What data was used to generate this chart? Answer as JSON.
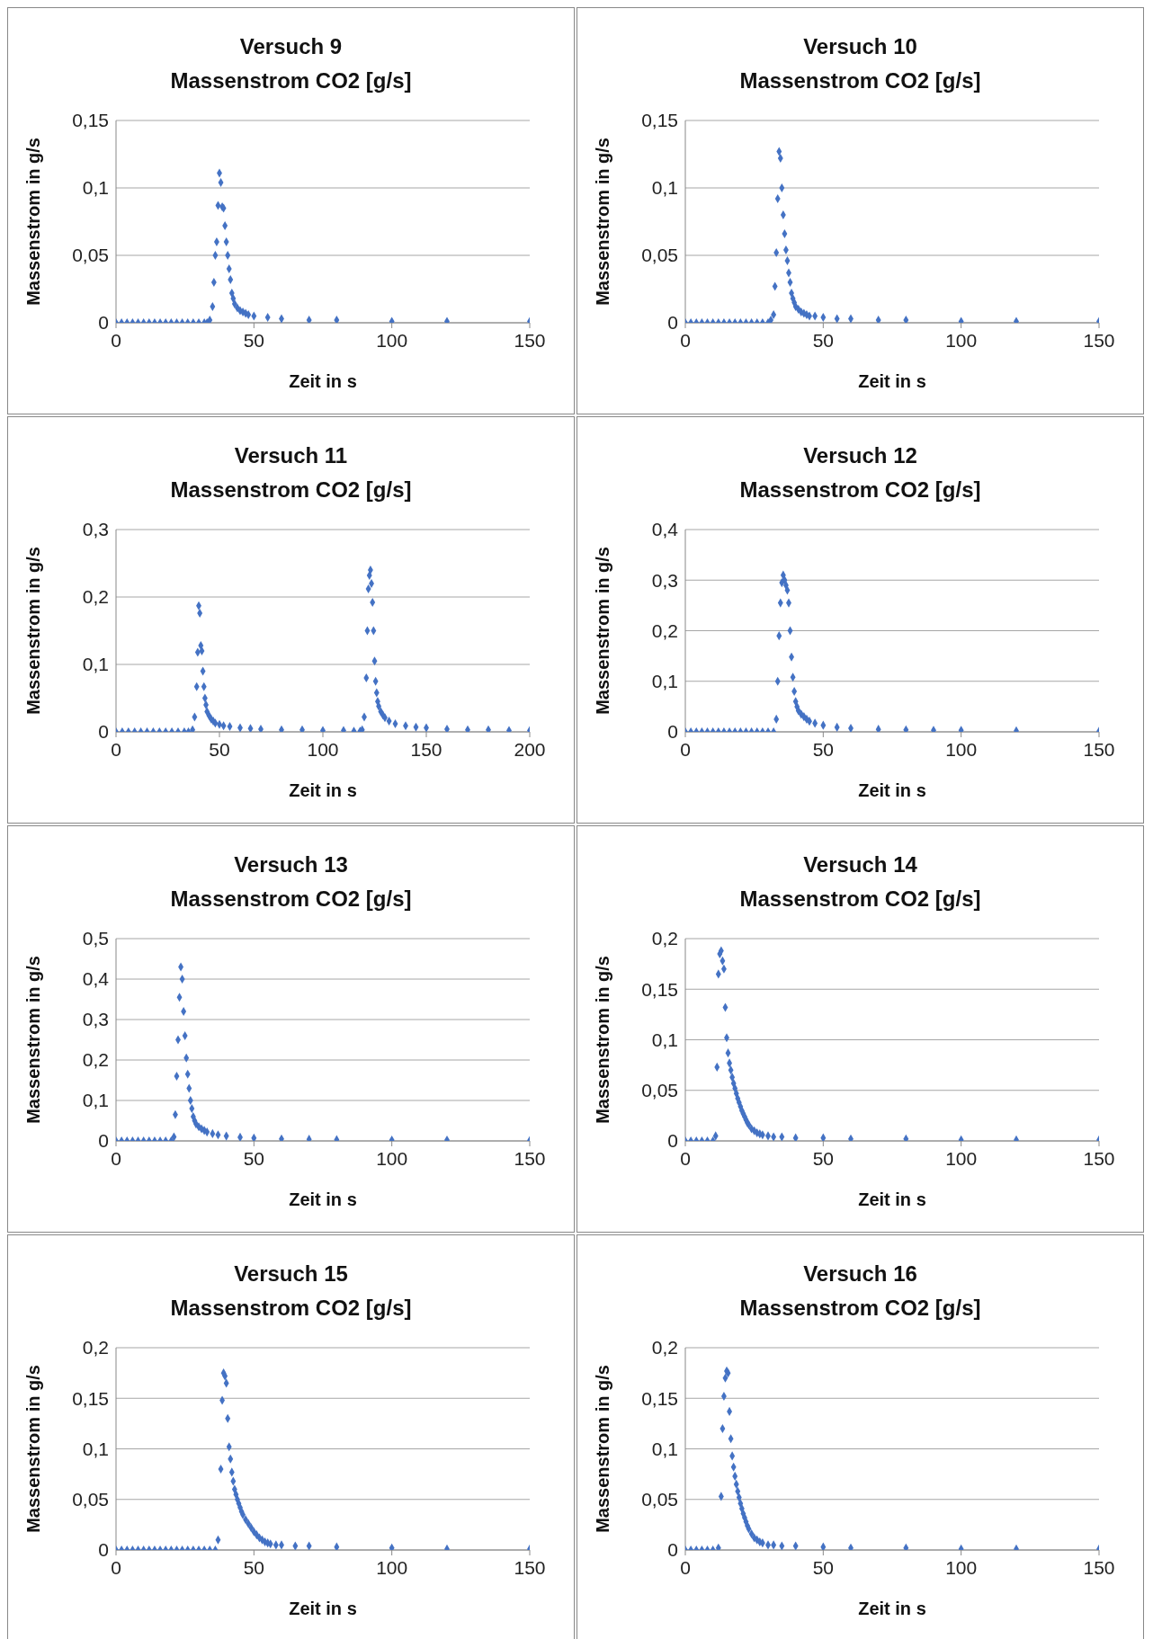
{
  "chart_data": [
    {
      "type": "scatter",
      "title": "Versuch 9",
      "subtitle": "Massenstrom CO2 [g/s]",
      "xlabel": "Zeit in s",
      "ylabel": "Massenstrom in g/s",
      "marker": "diamond",
      "grid": "y",
      "color": "#4472c4",
      "x": [
        0,
        2,
        4,
        6,
        8,
        10,
        12,
        14,
        16,
        18,
        20,
        22,
        24,
        26,
        28,
        30,
        32,
        33,
        34,
        35,
        35.5,
        36,
        36.5,
        37,
        37.5,
        38,
        38.5,
        39,
        39.5,
        40,
        40.5,
        41,
        41.5,
        42,
        42.5,
        43,
        44,
        45,
        46,
        47,
        48,
        50,
        55,
        60,
        70,
        80,
        100,
        120,
        150
      ],
      "values": [
        0,
        0,
        0,
        0,
        0,
        0,
        0,
        0,
        0,
        0,
        0,
        0,
        0,
        0,
        0,
        0,
        0,
        0,
        0.002,
        0.012,
        0.03,
        0.05,
        0.06,
        0.087,
        0.111,
        0.104,
        0.086,
        0.085,
        0.072,
        0.06,
        0.05,
        0.04,
        0.032,
        0.022,
        0.018,
        0.014,
        0.011,
        0.009,
        0.008,
        0.007,
        0.006,
        0.005,
        0.004,
        0.003,
        0.002,
        0.002,
        0.001,
        0.001,
        0.001
      ],
      "xlim": [
        0,
        150
      ],
      "xticks": [
        0,
        50,
        100,
        150
      ],
      "ylim": [
        0,
        0.15
      ],
      "yticks": [
        {
          "value": 0,
          "label": "0"
        },
        {
          "value": 0.05,
          "label": "0,05"
        },
        {
          "value": 0.1,
          "label": "0,1"
        },
        {
          "value": 0.15,
          "label": "0,15"
        }
      ]
    },
    {
      "type": "scatter",
      "title": "Versuch 10",
      "subtitle": "Massenstrom CO2 [g/s]",
      "xlabel": "Zeit in s",
      "ylabel": "Massenstrom in g/s",
      "marker": "diamond",
      "grid": "y",
      "color": "#4472c4",
      "x": [
        0,
        2,
        4,
        6,
        8,
        10,
        12,
        14,
        16,
        18,
        20,
        22,
        24,
        26,
        28,
        30,
        31,
        32,
        32.5,
        33,
        33.5,
        34,
        34.5,
        35,
        35.5,
        36,
        36.5,
        37,
        37.5,
        38,
        38.5,
        39,
        39.5,
        40,
        41,
        42,
        43,
        44,
        45,
        47,
        50,
        55,
        60,
        70,
        80,
        100,
        120,
        150
      ],
      "values": [
        0,
        0,
        0,
        0,
        0,
        0,
        0,
        0,
        0,
        0,
        0,
        0,
        0,
        0,
        0,
        0,
        0.002,
        0.006,
        0.027,
        0.052,
        0.092,
        0.127,
        0.122,
        0.1,
        0.08,
        0.066,
        0.054,
        0.046,
        0.037,
        0.03,
        0.022,
        0.018,
        0.015,
        0.012,
        0.01,
        0.008,
        0.007,
        0.006,
        0.005,
        0.005,
        0.004,
        0.003,
        0.003,
        0.002,
        0.002,
        0.001,
        0.001,
        0.001
      ],
      "xlim": [
        0,
        150
      ],
      "xticks": [
        0,
        50,
        100,
        150
      ],
      "ylim": [
        0,
        0.15
      ],
      "yticks": [
        {
          "value": 0,
          "label": "0"
        },
        {
          "value": 0.05,
          "label": "0,05"
        },
        {
          "value": 0.1,
          "label": "0,1"
        },
        {
          "value": 0.15,
          "label": "0,15"
        }
      ]
    },
    {
      "type": "scatter",
      "title": "Versuch 11",
      "subtitle": "Massenstrom CO2 [g/s]",
      "xlabel": "Zeit in s",
      "ylabel": "Massenstrom in g/s",
      "marker": "diamond",
      "grid": "y",
      "color": "#4472c4",
      "x": [
        0,
        3,
        6,
        9,
        12,
        15,
        18,
        21,
        24,
        27,
        30,
        33,
        35,
        37,
        38,
        39,
        39.5,
        40,
        40.5,
        41,
        41.5,
        42,
        42.5,
        43,
        43.5,
        44,
        45,
        46,
        47,
        48,
        50,
        52,
        55,
        60,
        65,
        70,
        80,
        90,
        100,
        110,
        115,
        118,
        119,
        120,
        121,
        121.5,
        122,
        122.5,
        123,
        123.5,
        124,
        124.5,
        125,
        125.5,
        126,
        126.5,
        127,
        128,
        129,
        130,
        132,
        135,
        140,
        145,
        150,
        160,
        170,
        180,
        190,
        200
      ],
      "values": [
        0,
        0,
        0,
        0,
        0,
        0,
        0,
        0,
        0,
        0,
        0,
        0,
        0,
        0.003,
        0.022,
        0.067,
        0.118,
        0.187,
        0.176,
        0.128,
        0.12,
        0.09,
        0.067,
        0.05,
        0.04,
        0.03,
        0.024,
        0.019,
        0.016,
        0.013,
        0.011,
        0.009,
        0.008,
        0.006,
        0.005,
        0.004,
        0.003,
        0.003,
        0.002,
        0.002,
        0.001,
        0.001,
        0.003,
        0.022,
        0.08,
        0.15,
        0.212,
        0.232,
        0.24,
        0.22,
        0.192,
        0.15,
        0.105,
        0.075,
        0.058,
        0.045,
        0.038,
        0.03,
        0.025,
        0.021,
        0.016,
        0.012,
        0.009,
        0.007,
        0.006,
        0.004,
        0.003,
        0.003,
        0.002,
        0.002
      ],
      "xlim": [
        0,
        200
      ],
      "xticks": [
        0,
        50,
        100,
        150,
        200
      ],
      "ylim": [
        0,
        0.3
      ],
      "yticks": [
        {
          "value": 0,
          "label": "0"
        },
        {
          "value": 0.1,
          "label": "0,1"
        },
        {
          "value": 0.2,
          "label": "0,2"
        },
        {
          "value": 0.3,
          "label": "0,3"
        }
      ]
    },
    {
      "type": "scatter",
      "title": "Versuch 12",
      "subtitle": "Massenstrom CO2 [g/s]",
      "xlabel": "Zeit in s",
      "ylabel": "Massenstrom in g/s",
      "marker": "diamond",
      "grid": "y",
      "color": "#4472c4",
      "x": [
        0,
        2,
        4,
        6,
        8,
        10,
        12,
        14,
        16,
        18,
        20,
        22,
        24,
        26,
        28,
        30,
        32,
        33,
        33.5,
        34,
        34.5,
        35,
        35.5,
        36,
        36.5,
        37,
        37.5,
        38,
        38.5,
        39,
        39.5,
        40,
        40.5,
        41,
        42,
        43,
        44,
        45,
        47,
        50,
        55,
        60,
        70,
        80,
        90,
        100,
        120,
        150
      ],
      "values": [
        0,
        0,
        0,
        0,
        0,
        0,
        0,
        0,
        0,
        0,
        0,
        0,
        0,
        0,
        0,
        0,
        0,
        0.025,
        0.1,
        0.19,
        0.255,
        0.295,
        0.31,
        0.3,
        0.29,
        0.28,
        0.255,
        0.2,
        0.148,
        0.108,
        0.08,
        0.06,
        0.05,
        0.042,
        0.035,
        0.03,
        0.025,
        0.021,
        0.017,
        0.013,
        0.009,
        0.007,
        0.005,
        0.004,
        0.003,
        0.003,
        0.002,
        0.001
      ],
      "xlim": [
        0,
        150
      ],
      "xticks": [
        0,
        50,
        100,
        150
      ],
      "ylim": [
        0,
        0.4
      ],
      "yticks": [
        {
          "value": 0,
          "label": "0"
        },
        {
          "value": 0.1,
          "label": "0,1"
        },
        {
          "value": 0.2,
          "label": "0,2"
        },
        {
          "value": 0.3,
          "label": "0,3"
        },
        {
          "value": 0.4,
          "label": "0,4"
        }
      ]
    },
    {
      "type": "scatter",
      "title": "Versuch 13",
      "subtitle": "Massenstrom CO2 [g/s]",
      "xlabel": "Zeit in s",
      "ylabel": "Massenstrom in g/s",
      "marker": "diamond",
      "grid": "y",
      "color": "#4472c4",
      "x": [
        0,
        2,
        4,
        6,
        8,
        10,
        12,
        14,
        16,
        18,
        20,
        21,
        21.5,
        22,
        22.5,
        23,
        23.5,
        24,
        24.5,
        25,
        25.5,
        26,
        26.5,
        27,
        27.5,
        28,
        28.5,
        29,
        30,
        31,
        32,
        33,
        35,
        37,
        40,
        45,
        50,
        60,
        70,
        80,
        100,
        120,
        150
      ],
      "values": [
        0,
        0,
        0,
        0,
        0,
        0,
        0,
        0,
        0,
        0,
        0,
        0.01,
        0.065,
        0.16,
        0.25,
        0.355,
        0.43,
        0.4,
        0.32,
        0.26,
        0.205,
        0.165,
        0.13,
        0.1,
        0.08,
        0.06,
        0.05,
        0.042,
        0.035,
        0.03,
        0.026,
        0.022,
        0.018,
        0.015,
        0.012,
        0.009,
        0.007,
        0.005,
        0.004,
        0.003,
        0.002,
        0.002,
        0.001
      ],
      "xlim": [
        0,
        150
      ],
      "xticks": [
        0,
        50,
        100,
        150
      ],
      "ylim": [
        0,
        0.5
      ],
      "yticks": [
        {
          "value": 0,
          "label": "0"
        },
        {
          "value": 0.1,
          "label": "0,1"
        },
        {
          "value": 0.2,
          "label": "0,2"
        },
        {
          "value": 0.3,
          "label": "0,3"
        },
        {
          "value": 0.4,
          "label": "0,4"
        },
        {
          "value": 0.5,
          "label": "0,5"
        }
      ]
    },
    {
      "type": "scatter",
      "title": "Versuch 14",
      "subtitle": "Massenstrom CO2 [g/s]",
      "xlabel": "Zeit in s",
      "ylabel": "Massenstrom in g/s",
      "marker": "diamond",
      "grid": "y",
      "color": "#4472c4",
      "x": [
        0,
        2,
        4,
        6,
        8,
        10,
        11,
        11.5,
        12,
        12.5,
        13,
        13.5,
        14,
        14.5,
        15,
        15.5,
        16,
        16.5,
        17,
        17.5,
        18,
        18.5,
        19,
        19.5,
        20,
        20.5,
        21,
        21.5,
        22,
        22.5,
        23,
        24,
        25,
        26,
        27,
        28,
        30,
        32,
        35,
        40,
        50,
        60,
        80,
        100,
        120,
        150
      ],
      "values": [
        0,
        0,
        0,
        0,
        0,
        0,
        0.005,
        0.073,
        0.165,
        0.185,
        0.188,
        0.178,
        0.17,
        0.132,
        0.102,
        0.087,
        0.077,
        0.07,
        0.063,
        0.057,
        0.052,
        0.047,
        0.042,
        0.038,
        0.034,
        0.03,
        0.027,
        0.024,
        0.021,
        0.018,
        0.016,
        0.012,
        0.01,
        0.008,
        0.007,
        0.006,
        0.005,
        0.004,
        0.004,
        0.003,
        0.003,
        0.002,
        0.002,
        0.001,
        0.001,
        0.001
      ],
      "xlim": [
        0,
        150
      ],
      "xticks": [
        0,
        50,
        100,
        150
      ],
      "ylim": [
        0,
        0.2
      ],
      "yticks": [
        {
          "value": 0,
          "label": "0"
        },
        {
          "value": 0.05,
          "label": "0,05"
        },
        {
          "value": 0.1,
          "label": "0,1"
        },
        {
          "value": 0.15,
          "label": "0,15"
        },
        {
          "value": 0.2,
          "label": "0,2"
        }
      ]
    },
    {
      "type": "scatter",
      "title": "Versuch 15",
      "subtitle": "Massenstrom CO2 [g/s]",
      "xlabel": "Zeit in s",
      "ylabel": "Massenstrom in g/s",
      "marker": "diamond",
      "grid": "y",
      "color": "#4472c4",
      "x": [
        0,
        2,
        4,
        6,
        8,
        10,
        12,
        14,
        16,
        18,
        20,
        22,
        24,
        26,
        28,
        30,
        32,
        34,
        36,
        37,
        38,
        38.5,
        39,
        39.5,
        40,
        40.5,
        41,
        41.5,
        42,
        42.5,
        43,
        43.5,
        44,
        44.5,
        45,
        45.5,
        46,
        47,
        48,
        49,
        50,
        51,
        52,
        53,
        54,
        55,
        56,
        58,
        60,
        65,
        70,
        80,
        100,
        120,
        150
      ],
      "values": [
        0,
        0,
        0,
        0,
        0,
        0,
        0,
        0,
        0,
        0,
        0,
        0,
        0,
        0,
        0,
        0,
        0,
        0,
        0,
        0.01,
        0.08,
        0.148,
        0.175,
        0.172,
        0.165,
        0.13,
        0.102,
        0.09,
        0.077,
        0.068,
        0.06,
        0.055,
        0.05,
        0.046,
        0.042,
        0.038,
        0.035,
        0.03,
        0.026,
        0.022,
        0.018,
        0.015,
        0.012,
        0.01,
        0.008,
        0.007,
        0.006,
        0.005,
        0.005,
        0.004,
        0.004,
        0.003,
        0.002,
        0.001,
        0.001
      ],
      "xlim": [
        0,
        150
      ],
      "xticks": [
        0,
        50,
        100,
        150
      ],
      "ylim": [
        0,
        0.2
      ],
      "yticks": [
        {
          "value": 0,
          "label": "0"
        },
        {
          "value": 0.05,
          "label": "0,05"
        },
        {
          "value": 0.1,
          "label": "0,1"
        },
        {
          "value": 0.15,
          "label": "0,15"
        },
        {
          "value": 0.2,
          "label": "0,2"
        }
      ]
    },
    {
      "type": "scatter",
      "title": "Versuch 16",
      "subtitle": "Massenstrom CO2 [g/s]",
      "xlabel": "Zeit in s",
      "ylabel": "Massenstrom in g/s",
      "marker": "diamond",
      "grid": "y",
      "color": "#4472c4",
      "x": [
        0,
        2,
        4,
        6,
        8,
        10,
        12,
        13,
        13.5,
        14,
        14.5,
        15,
        15.5,
        16,
        16.5,
        17,
        17.5,
        18,
        18.5,
        19,
        19.5,
        20,
        20.5,
        21,
        21.5,
        22,
        22.5,
        23,
        24,
        25,
        26,
        27,
        28,
        30,
        32,
        35,
        40,
        50,
        60,
        80,
        100,
        120,
        150
      ],
      "values": [
        0,
        0,
        0,
        0,
        0,
        0,
        0.002,
        0.053,
        0.12,
        0.152,
        0.17,
        0.177,
        0.175,
        0.137,
        0.11,
        0.093,
        0.082,
        0.073,
        0.065,
        0.058,
        0.052,
        0.046,
        0.041,
        0.036,
        0.032,
        0.028,
        0.024,
        0.021,
        0.016,
        0.012,
        0.01,
        0.008,
        0.007,
        0.005,
        0.005,
        0.004,
        0.004,
        0.003,
        0.002,
        0.002,
        0.001,
        0.001,
        0.001
      ],
      "xlim": [
        0,
        150
      ],
      "xticks": [
        0,
        50,
        100,
        150
      ],
      "ylim": [
        0,
        0.2
      ],
      "yticks": [
        {
          "value": 0,
          "label": "0"
        },
        {
          "value": 0.05,
          "label": "0,05"
        },
        {
          "value": 0.1,
          "label": "0,1"
        },
        {
          "value": 0.15,
          "label": "0,15"
        },
        {
          "value": 0.2,
          "label": "0,2"
        }
      ]
    }
  ]
}
